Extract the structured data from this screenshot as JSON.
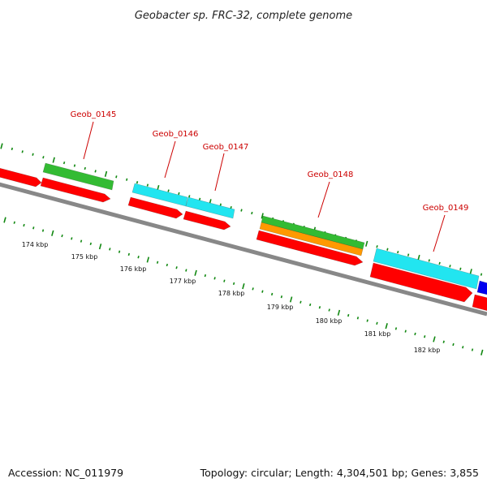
{
  "title": "Geobacter sp. FRC-32, complete genome",
  "accession_text": "Accession: NC_011979",
  "summary_text": "Topology: circular; Length: 4,304,501 bp; Genes: 3,855",
  "colors": {
    "backbone": "#888888",
    "cds": "#ff0000",
    "gene_green": "#33bb33",
    "gene_cyan": "#22e5f0",
    "gene_orange": "#ff9900",
    "gene_blue": "#0000ee",
    "label": "#cc0000",
    "tick": "#118811"
  },
  "scale": {
    "unit": "kbp",
    "tick_labels": [
      "174 kbp",
      "175 kbp",
      "176 kbp",
      "177 kbp",
      "178 kbp",
      "179 kbp",
      "180 kbp",
      "181 kbp",
      "182 kbp"
    ]
  },
  "labeled_genes": [
    "Geob_0145",
    "Geob_0146",
    "Geob_0147",
    "Geob_0148",
    "Geob_0149"
  ]
}
